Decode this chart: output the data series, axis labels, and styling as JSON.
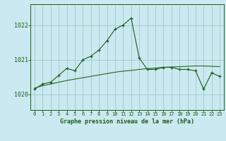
{
  "title": "Graphe pression niveau de la mer (hPa)",
  "background_color": "#cbe9f0",
  "grid_color": "#99cccc",
  "line_color": "#1a5c1a",
  "xlim": [
    -0.5,
    23.5
  ],
  "ylim": [
    1019.55,
    1022.6
  ],
  "yticks": [
    1020,
    1021,
    1022
  ],
  "xticks": [
    0,
    1,
    2,
    3,
    4,
    5,
    6,
    7,
    8,
    9,
    10,
    11,
    12,
    13,
    14,
    15,
    16,
    17,
    18,
    19,
    20,
    21,
    22,
    23
  ],
  "x": [
    0,
    1,
    2,
    3,
    4,
    5,
    6,
    7,
    8,
    9,
    10,
    11,
    12,
    13,
    14,
    15,
    16,
    17,
    18,
    19,
    20,
    21,
    22,
    23
  ],
  "y_main": [
    1020.15,
    1020.3,
    1020.35,
    1020.55,
    1020.75,
    1020.68,
    1021.0,
    1021.1,
    1021.28,
    1021.55,
    1021.88,
    1022.0,
    1022.2,
    1021.05,
    1020.72,
    1020.72,
    1020.78,
    1020.78,
    1020.72,
    1020.72,
    1020.68,
    1020.15,
    1020.62,
    1020.52
  ],
  "y_trend": [
    1020.18,
    1020.25,
    1020.3,
    1020.35,
    1020.4,
    1020.44,
    1020.48,
    1020.52,
    1020.56,
    1020.6,
    1020.64,
    1020.67,
    1020.69,
    1020.72,
    1020.74,
    1020.76,
    1020.78,
    1020.79,
    1020.8,
    1020.81,
    1020.82,
    1020.82,
    1020.81,
    1020.8
  ]
}
